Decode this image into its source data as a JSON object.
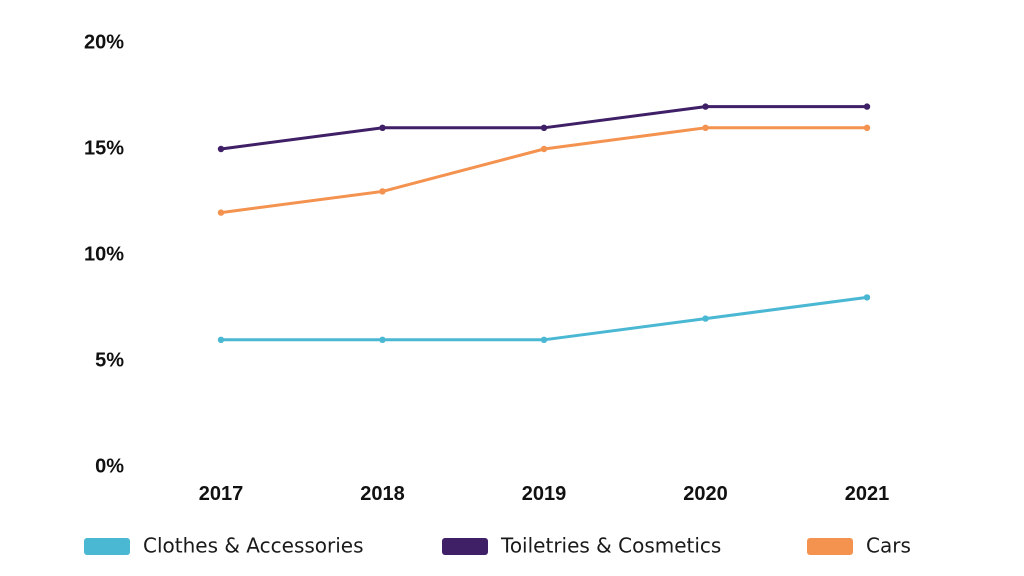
{
  "chart_data": {
    "type": "line",
    "categories": [
      "2017",
      "2018",
      "2019",
      "2020",
      "2021"
    ],
    "y_tick_labels": [
      "0%",
      "5%",
      "10%",
      "15%",
      "20%"
    ],
    "y_ticks": [
      0,
      5,
      10,
      15,
      20
    ],
    "ylim": [
      0,
      20
    ],
    "grid": false,
    "legend_position": "bottom",
    "series": [
      {
        "name": "Clothes & Accessories",
        "color": "#4bb8d3",
        "values": [
          6,
          6,
          6,
          7,
          8
        ]
      },
      {
        "name": "Toiletries & Cosmetics",
        "color": "#3f1f66",
        "values": [
          15,
          16,
          16,
          17,
          17
        ]
      },
      {
        "name": "Cars",
        "color": "#f4924f",
        "values": [
          12,
          13,
          15,
          16,
          16
        ]
      }
    ]
  }
}
